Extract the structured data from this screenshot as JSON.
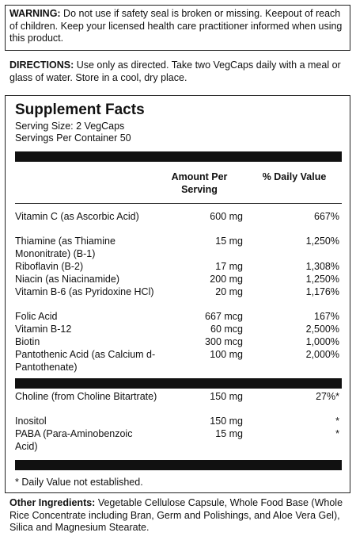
{
  "warning": {
    "label": "WARNING:",
    "text": " Do not use if safety seal is broken or missing. Keepout of reach of children. Keep your licensed health care practitioner informed when using this product."
  },
  "directions": {
    "label": "DIRECTIONS:",
    "text": " Use only as directed. Take two VegCaps daily with a meal or glass of water.  Store in a cool, dry place."
  },
  "facts": {
    "title": "Supplement Facts",
    "serving_size": "Serving Size: 2 VegCaps",
    "servings_per_container": "Servings Per Container 50",
    "col_amount": "Amount Per Serving",
    "col_dv": "% Daily Value",
    "group1": [
      {
        "name": "Vitamin C (as Ascorbic Acid)",
        "amount": "600 mg",
        "dv": "667%"
      },
      {
        "name": "Thiamine (as Thiamine Mononitrate) (B-1)",
        "amount": "15 mg",
        "dv": "1,250%"
      },
      {
        "name": "Riboflavin (B-2)",
        "amount": "17 mg",
        "dv": "1,308%"
      },
      {
        "name": "Niacin (as Niacinamide)",
        "amount": "200 mg",
        "dv": "1,250%"
      },
      {
        "name": "Vitamin B-6 (as Pyridoxine HCl)",
        "amount": "20 mg",
        "dv": "1,176%"
      },
      {
        "name": "Folic Acid",
        "amount": "667 mcg",
        "dv": "167%"
      },
      {
        "name": "Vitamin B-12",
        "amount": "60 mcg",
        "dv": "2,500%"
      },
      {
        "name": "Biotin",
        "amount": "300 mcg",
        "dv": "1,000%"
      },
      {
        "name": "Pantothenic Acid (as Calcium d-Pantothenate)",
        "amount": "100 mg",
        "dv": "2,000%"
      }
    ],
    "group2": [
      {
        "name": "Choline (from Choline Bitartrate)",
        "amount": "150 mg",
        "dv": "27%*"
      },
      {
        "name": "Inositol",
        "amount": "150 mg",
        "dv": "*"
      },
      {
        "name": "PABA (Para-Aminobenzoic Acid)",
        "amount": "15 mg",
        "dv": "*"
      }
    ],
    "footnote": "* Daily Value not established."
  },
  "other_ingredients": {
    "label": "Other Ingredients:",
    "text": " Vegetable Cellulose Capsule, Whole Food Base (Whole Rice Concentrate including Bran, Germ and Polishings, and Aloe Vera Gel), Silica and Magnesium Stearate."
  }
}
